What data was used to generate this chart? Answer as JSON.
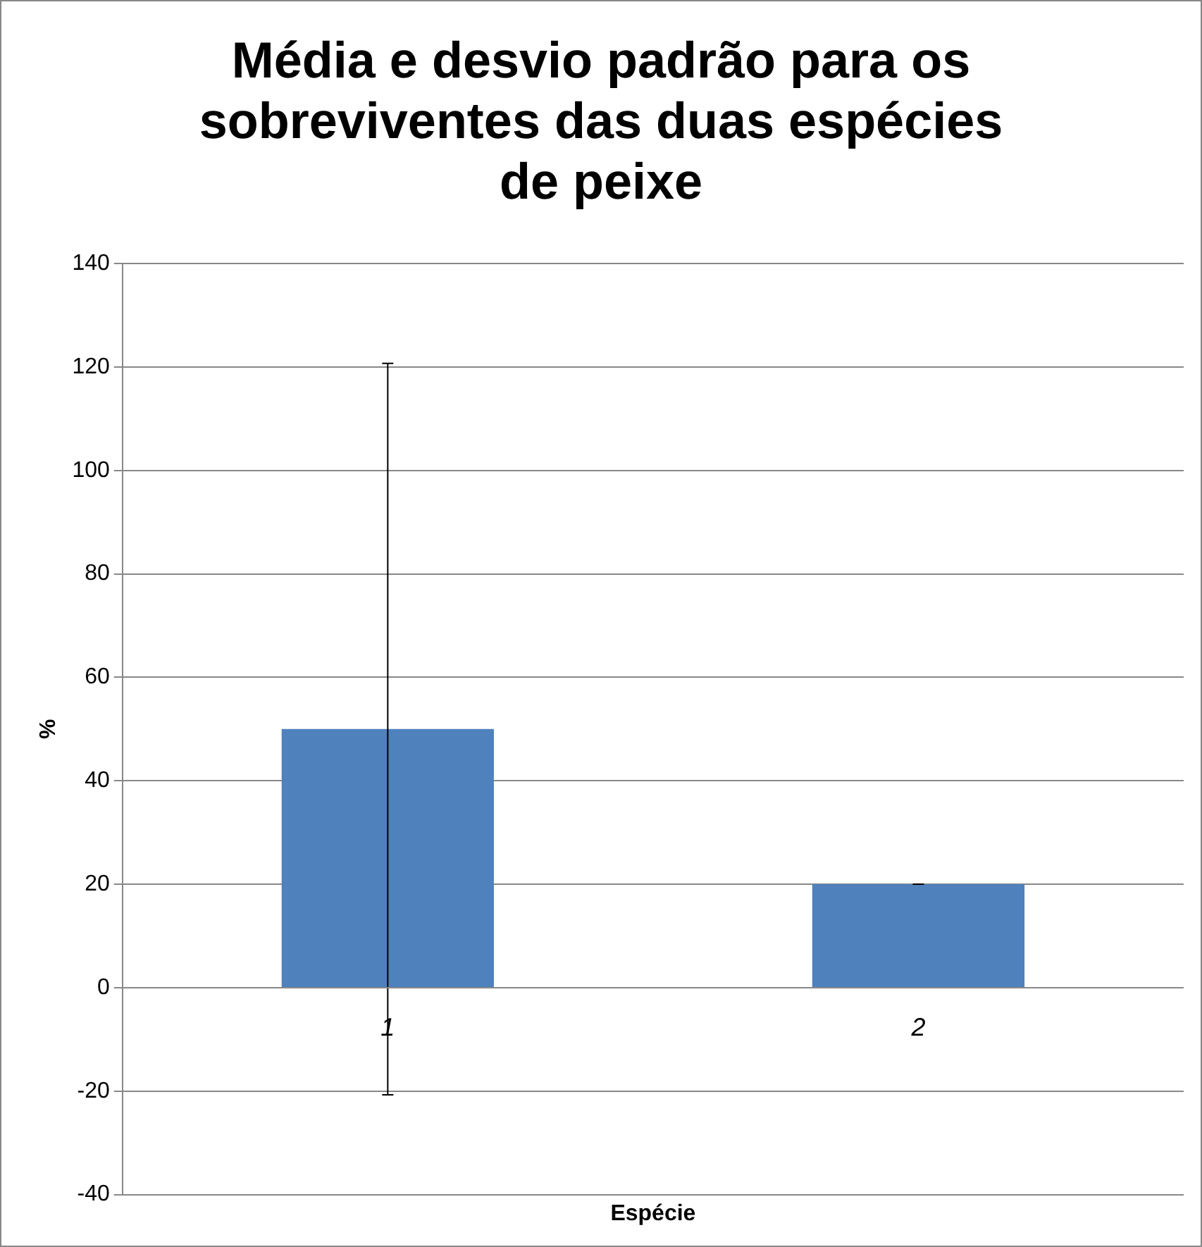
{
  "chart_data": {
    "type": "bar",
    "title": "Média e desvio padrão para os sobreviventes das duas espécies de peixe",
    "xlabel": "Espécie",
    "ylabel": "%",
    "categories": [
      "1",
      "2"
    ],
    "values": [
      50,
      20
    ],
    "errors": [
      70.7,
      0
    ],
    "color": "#4f81bd",
    "ylim": [
      -40,
      140
    ],
    "yticks": [
      -40,
      -20,
      0,
      20,
      40,
      60,
      80,
      100,
      120,
      140
    ],
    "grid": "y",
    "legend": false
  }
}
